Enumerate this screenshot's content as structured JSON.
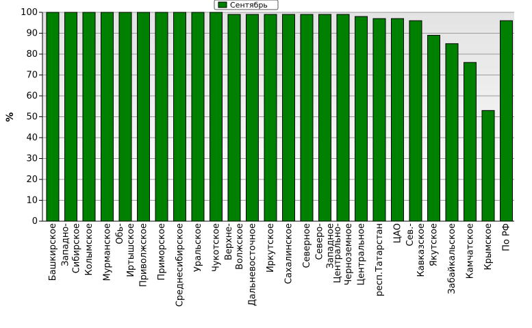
{
  "chart_data": {
    "type": "bar",
    "title": "",
    "xlabel": "",
    "ylabel": "%",
    "ylim": [
      0,
      100
    ],
    "yticks": [
      0,
      10,
      20,
      30,
      40,
      50,
      60,
      70,
      80,
      90,
      100
    ],
    "grid": "horizontal",
    "legend_position": "top-center",
    "categories": [
      "Башкирское",
      "Западно-Сибирское",
      "Колымское",
      "Мурманское",
      "Обь-Иртышское",
      "Приволжское",
      "Приморское",
      "Среднесибирское",
      "Уральское",
      "Чукотское",
      "Верхне-Волжское",
      "Дальневосточное",
      "Иркутское",
      "Сахалинское",
      "Северное",
      "Северо-Западное",
      "Центрально-Черноземное",
      "Центральное",
      "респ.Татарстан",
      "ЦАО",
      "Сев.-Кавказское",
      "Якутское",
      "Забайкальское",
      "Камчатское",
      "Крымское",
      "По РФ"
    ],
    "series": [
      {
        "name": "Сентябрь",
        "color": "#008000",
        "values": [
          100,
          100,
          100,
          100,
          100,
          100,
          100,
          100,
          100,
          100,
          99,
          99,
          99,
          99,
          99,
          99,
          99,
          98,
          97,
          97,
          96,
          89,
          85,
          76,
          53,
          96
        ]
      }
    ],
    "colors": {
      "bar": "#008000",
      "bar_edge": "#000000",
      "plot_bg_top": "#e3e3e3",
      "plot_bg_bottom": "#ffffff",
      "grid": "#9a9a9a"
    }
  }
}
